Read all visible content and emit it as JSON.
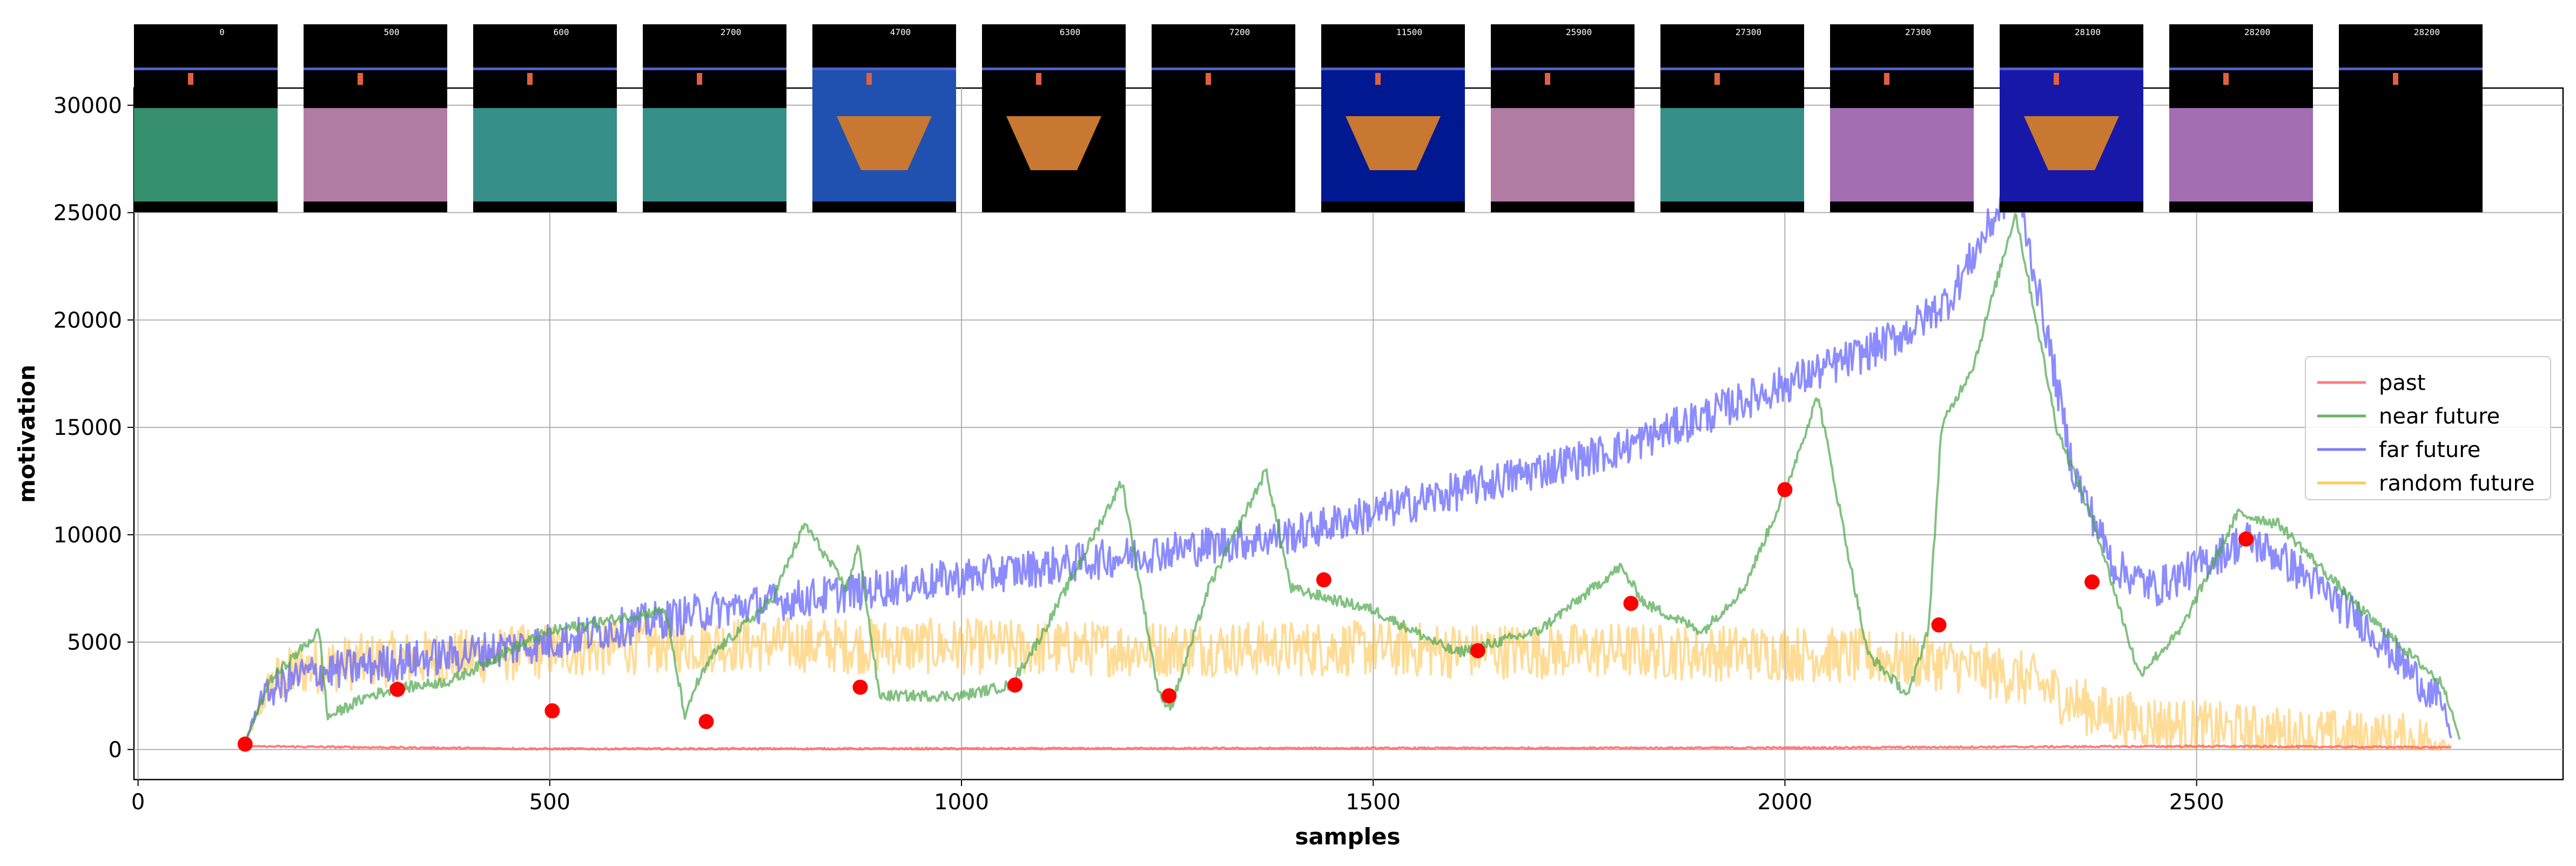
{
  "chart_data": {
    "type": "line",
    "xlabel": "samples",
    "ylabel": "motivation",
    "xlim": [
      -5,
      2945
    ],
    "ylim": [
      -1400,
      30800
    ],
    "x_ticks": [
      0,
      500,
      1000,
      1500,
      2000,
      2500
    ],
    "y_ticks": [
      0,
      5000,
      10000,
      15000,
      20000,
      25000,
      30000
    ],
    "x_tick_labels": [
      "0",
      "500",
      "1000",
      "1500",
      "2000",
      "2500"
    ],
    "y_tick_labels": [
      "0",
      "5000",
      "10000",
      "15000",
      "20000",
      "25000",
      "30000"
    ],
    "grid": true,
    "legend_position": "right",
    "series": [
      {
        "name": "past",
        "color": "#ff6666",
        "x": [
          130,
          500,
          1000,
          1500,
          2000,
          2500,
          2810
        ],
        "values": [
          150,
          30,
          40,
          60,
          80,
          150,
          100
        ]
      },
      {
        "name": "near future",
        "color": "#4ca64c",
        "x": [
          130,
          160,
          220,
          230,
          280,
          310,
          380,
          460,
          500,
          640,
          665,
          675,
          700,
          770,
          810,
          860,
          875,
          900,
          1000,
          1060,
          1100,
          1195,
          1240,
          1255,
          1300,
          1370,
          1400,
          1500,
          1600,
          1620,
          1700,
          1800,
          1830,
          1900,
          1950,
          2000,
          2040,
          2100,
          2150,
          2175,
          2190,
          2230,
          2280,
          2330,
          2380,
          2430,
          2480,
          2550,
          2600,
          2700,
          2800,
          2820
        ],
        "values": [
          300,
          3200,
          5500,
          1500,
          2500,
          2800,
          3200,
          4800,
          5500,
          6500,
          1400,
          2800,
          4500,
          7000,
          10500,
          7500,
          9500,
          2500,
          2500,
          3000,
          5500,
          12500,
          2500,
          2000,
          7500,
          13000,
          7500,
          6500,
          4500,
          4700,
          5500,
          8500,
          6800,
          5500,
          7500,
          12000,
          16500,
          4500,
          2500,
          5800,
          15000,
          18000,
          25000,
          15000,
          10000,
          3500,
          5500,
          11000,
          10500,
          6500,
          3000,
          400
        ]
      },
      {
        "name": "far future",
        "color": "#6666ff",
        "x": [
          130,
          150,
          200,
          300,
          400,
          500,
          600,
          700,
          800,
          900,
          1000,
          1100,
          1200,
          1300,
          1400,
          1500,
          1600,
          1700,
          1800,
          1900,
          2000,
          2100,
          2150,
          2200,
          2250,
          2280,
          2320,
          2350,
          2400,
          2450,
          2500,
          2560,
          2600,
          2650,
          2700,
          2750,
          2800,
          2810
        ],
        "values": [
          300,
          2500,
          3500,
          4000,
          4500,
          5000,
          5800,
          6500,
          7000,
          7500,
          8000,
          8500,
          9000,
          9500,
          10000,
          11000,
          12000,
          13000,
          14000,
          15500,
          17000,
          18500,
          19500,
          21000,
          24500,
          26500,
          19000,
          13000,
          8500,
          7500,
          8500,
          9800,
          9000,
          7500,
          6000,
          4000,
          2000,
          400
        ]
      },
      {
        "name": "random future",
        "color": "#ffbf40",
        "x": [
          130,
          160,
          200,
          300,
          400,
          500,
          600,
          700,
          800,
          900,
          1000,
          1100,
          1200,
          1300,
          1400,
          1500,
          1600,
          1700,
          1800,
          1900,
          2000,
          2100,
          2200,
          2300,
          2350,
          2400,
          2500,
          2600,
          2700,
          2800,
          2810
        ],
        "values": [
          300,
          3000,
          3800,
          4200,
          4300,
          4600,
          4800,
          4900,
          4900,
          4800,
          4800,
          4700,
          4700,
          4700,
          4700,
          4700,
          4600,
          4600,
          4600,
          4500,
          4500,
          4300,
          4000,
          3200,
          2200,
          1500,
          1000,
          700,
          500,
          300,
          200
        ]
      },
      {
        "name": "",
        "type": "scatter",
        "color": "#ff0000",
        "x": [
          130,
          315,
          503,
          690,
          877,
          1065,
          1252,
          1440,
          1627,
          1813,
          2000,
          2187,
          2373,
          2560
        ],
        "values": [
          250,
          2800,
          1800,
          1300,
          2900,
          3000,
          2500,
          7900,
          4600,
          6800,
          12100,
          5800,
          7800,
          9800
        ]
      }
    ],
    "frames": [
      {
        "score": "0",
        "bg": "#000000",
        "floor": "#40a880",
        "x": 0
      },
      {
        "score": "500",
        "bg": "#000000",
        "floor": "#d090c0",
        "x": 1
      },
      {
        "score": "600",
        "bg": "#000000",
        "floor": "#40a8a0",
        "x": 2
      },
      {
        "score": "2700",
        "bg": "#000000",
        "floor": "#40a8a0",
        "x": 3
      },
      {
        "score": "4700",
        "bg": "#2050b0",
        "floor": "#2050b0",
        "x": 4
      },
      {
        "score": "6300",
        "bg": "#000000",
        "floor": "#000000",
        "x": 5
      },
      {
        "score": "7200",
        "bg": "#000000",
        "floor": "#000000",
        "x": 6
      },
      {
        "score": "11500",
        "bg": "#001890",
        "floor": "#001890",
        "x": 7
      },
      {
        "score": "25900",
        "bg": "#000000",
        "floor": "#d090c0",
        "x": 8
      },
      {
        "score": "27300",
        "bg": "#000000",
        "floor": "#40a8a0",
        "x": 9
      },
      {
        "score": "27300",
        "bg": "#000000",
        "floor": "#c080d0",
        "x": 10
      },
      {
        "score": "28100",
        "bg": "#1818a8",
        "floor": "#1818a8",
        "x": 11
      },
      {
        "score": "28200",
        "bg": "#000000",
        "floor": "#c080d0",
        "x": 12
      },
      {
        "score": "28200",
        "bg": "#000000",
        "floor": "#000000",
        "x": 13
      }
    ]
  }
}
